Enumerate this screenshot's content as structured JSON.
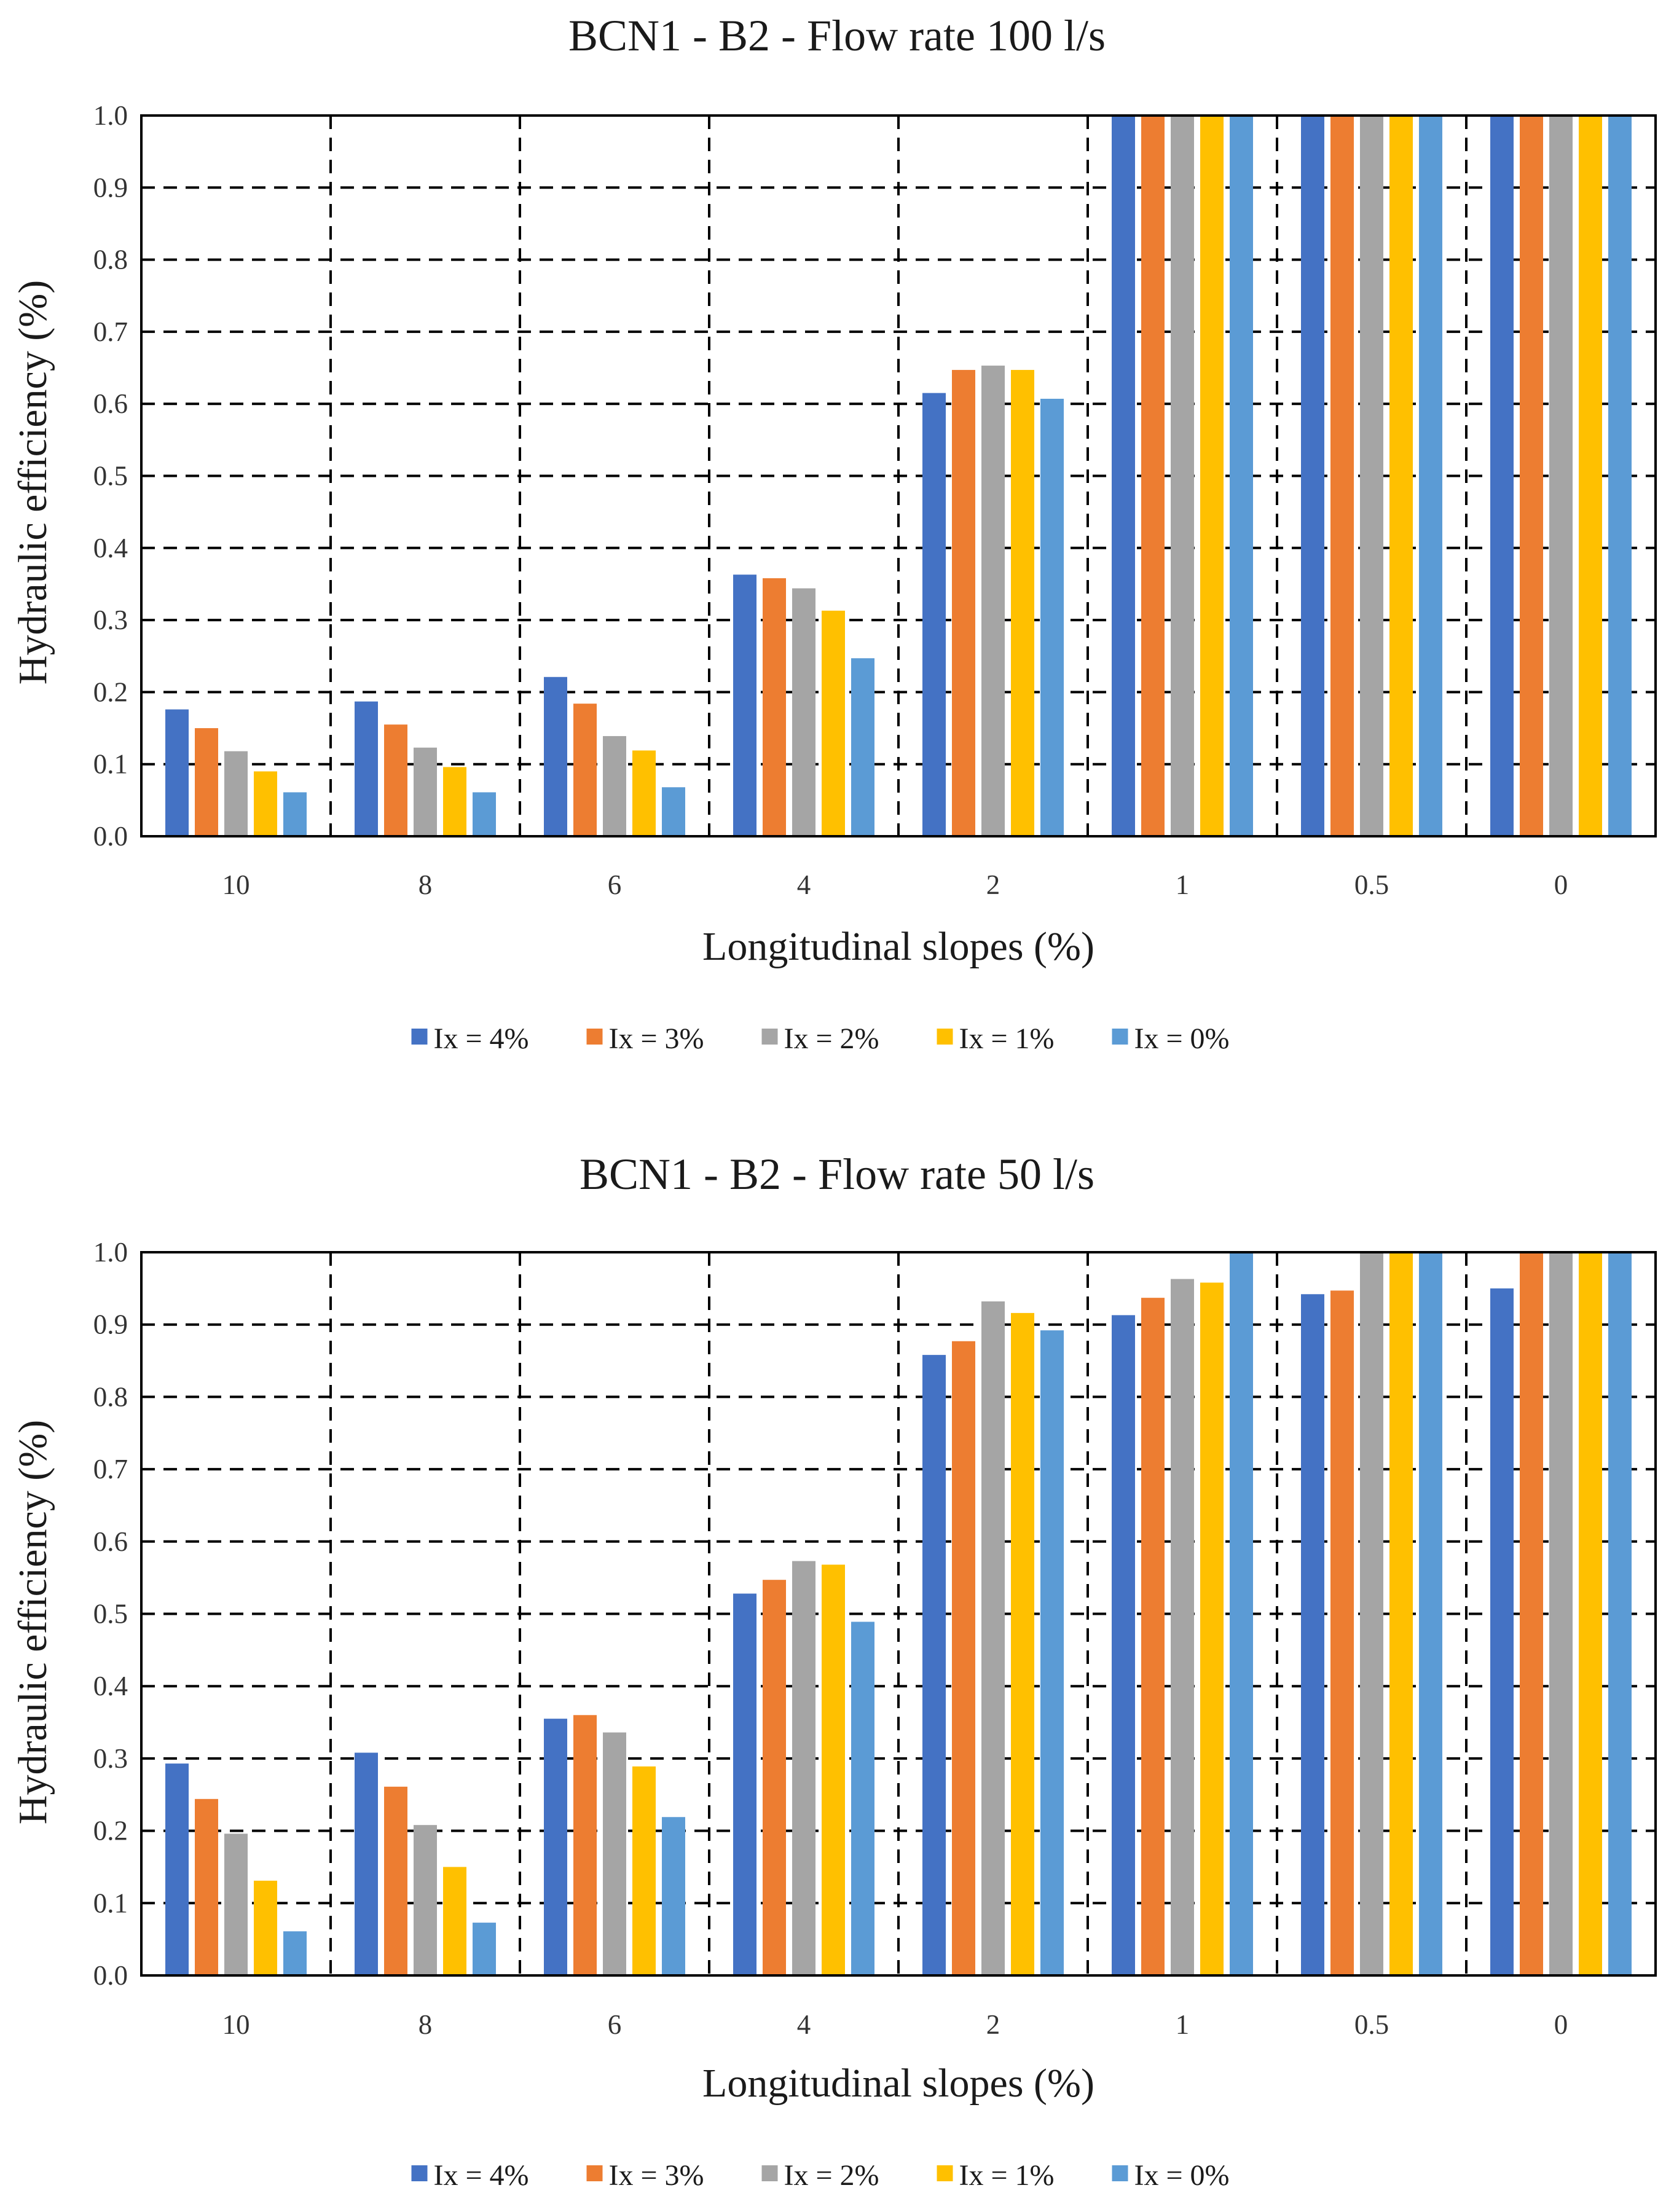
{
  "chart_data": [
    {
      "type": "bar",
      "title": "BCN1 - B2 - Flow rate 100 l/s",
      "xlabel": "Longitudinal slopes (%)",
      "ylabel": "Hydraulic efficiency  (%)",
      "ylim": [
        0,
        1.0
      ],
      "yticks": [
        "0.0",
        "0.1",
        "0.2",
        "0.3",
        "0.4",
        "0.5",
        "0.6",
        "0.7",
        "0.8",
        "0.9",
        "1.0"
      ],
      "categories": [
        "10",
        "8",
        "6",
        "4",
        "2",
        "1",
        "0.5",
        "0"
      ],
      "grid": true,
      "legend": "bottom",
      "series": [
        {
          "name": "Ix = 4%",
          "color": "#4472C4",
          "values": [
            0.176,
            0.187,
            0.221,
            0.363,
            0.615,
            1.0,
            1.0,
            1.0
          ]
        },
        {
          "name": "Ix = 3%",
          "color": "#ED7D31",
          "values": [
            0.15,
            0.155,
            0.184,
            0.358,
            0.647,
            1.0,
            1.0,
            1.0
          ]
        },
        {
          "name": "Ix = 2%",
          "color": "#A5A5A5",
          "values": [
            0.118,
            0.123,
            0.139,
            0.344,
            0.653,
            1.0,
            1.0,
            1.0
          ]
        },
        {
          "name": "Ix = 1%",
          "color": "#FFC000",
          "values": [
            0.09,
            0.096,
            0.119,
            0.313,
            0.647,
            1.0,
            1.0,
            1.0
          ]
        },
        {
          "name": "Ix = 0%",
          "color": "#5B9BD5",
          "values": [
            0.061,
            0.061,
            0.068,
            0.247,
            0.607,
            1.0,
            1.0,
            1.0
          ]
        }
      ]
    },
    {
      "type": "bar",
      "title": "BCN1 - B2 - Flow rate 50 l/s",
      "xlabel": "Longitudinal slopes (%)",
      "ylabel": "Hydraulic efficiency  (%)",
      "ylim": [
        0,
        1.0
      ],
      "yticks": [
        "0.0",
        "0.1",
        "0.2",
        "0.3",
        "0.4",
        "0.5",
        "0.6",
        "0.7",
        "0.8",
        "0.9",
        "1.0"
      ],
      "categories": [
        "10",
        "8",
        "6",
        "4",
        "2",
        "1",
        "0.5",
        "0"
      ],
      "grid": true,
      "legend": "bottom",
      "series": [
        {
          "name": "Ix = 4%",
          "color": "#4472C4",
          "values": [
            0.293,
            0.308,
            0.355,
            0.528,
            0.858,
            0.913,
            0.942,
            0.95
          ]
        },
        {
          "name": "Ix = 3%",
          "color": "#ED7D31",
          "values": [
            0.244,
            0.261,
            0.36,
            0.547,
            0.877,
            0.937,
            0.947,
            1.0
          ]
        },
        {
          "name": "Ix = 2%",
          "color": "#A5A5A5",
          "values": [
            0.196,
            0.208,
            0.336,
            0.573,
            0.932,
            0.963,
            1.0,
            1.0
          ]
        },
        {
          "name": "Ix = 1%",
          "color": "#FFC000",
          "values": [
            0.131,
            0.15,
            0.289,
            0.568,
            0.916,
            0.958,
            1.0,
            1.0
          ]
        },
        {
          "name": "Ix = 0%",
          "color": "#5B9BD5",
          "values": [
            0.061,
            0.073,
            0.219,
            0.489,
            0.892,
            1.0,
            1.0,
            1.0
          ]
        }
      ]
    }
  ]
}
